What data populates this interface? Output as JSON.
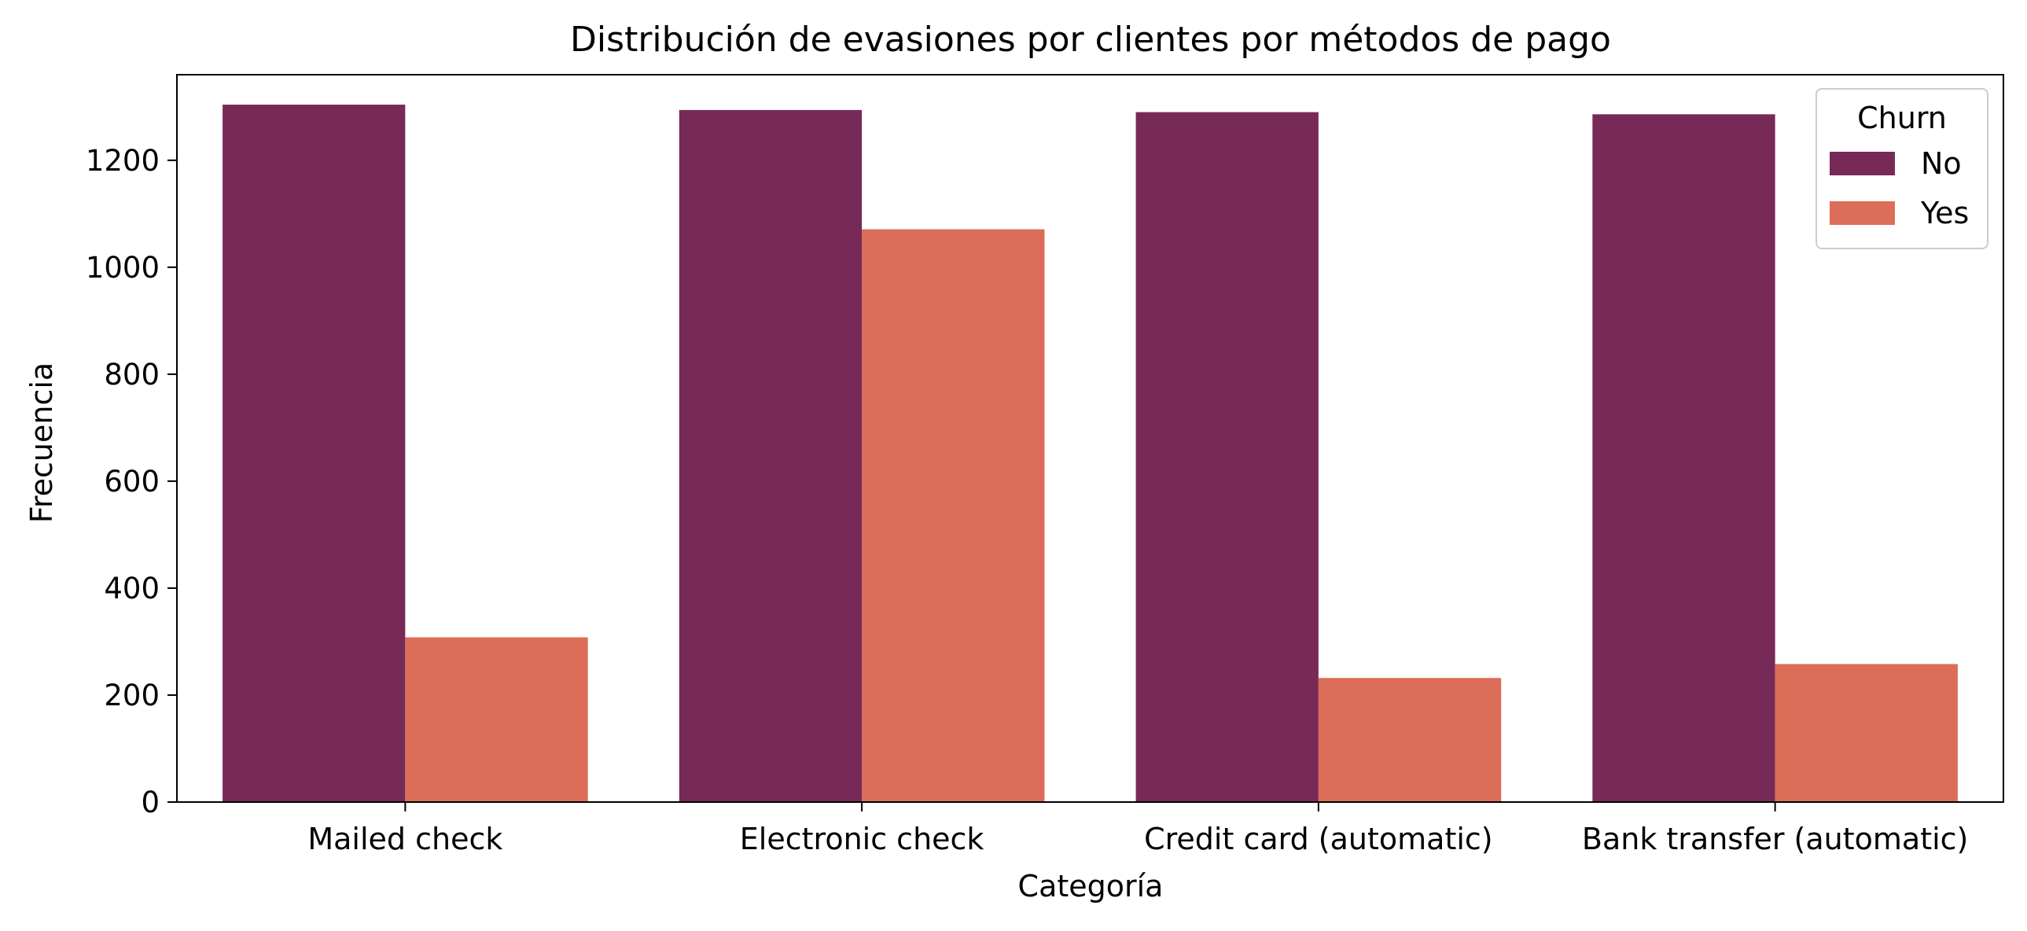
{
  "chart_data": {
    "type": "bar",
    "title": "Distribución de evasiones por clientes por métodos de pago",
    "xlabel": "Categoría",
    "ylabel": "Frecuencia",
    "categories": [
      "Mailed check",
      "Electronic check",
      "Credit card (automatic)",
      "Bank transfer (automatic)"
    ],
    "series": [
      {
        "name": "No",
        "color": "#772A58",
        "values": [
          1304,
          1294,
          1290,
          1286
        ]
      },
      {
        "name": "Yes",
        "color": "#DC6D58",
        "values": [
          308,
          1071,
          232,
          258
        ]
      }
    ],
    "ylim": [
      0,
      1360
    ],
    "yticks": [
      0,
      200,
      400,
      600,
      800,
      1000,
      1200
    ],
    "grid": false,
    "legend": {
      "title": "Churn",
      "placement": "top-right"
    }
  }
}
